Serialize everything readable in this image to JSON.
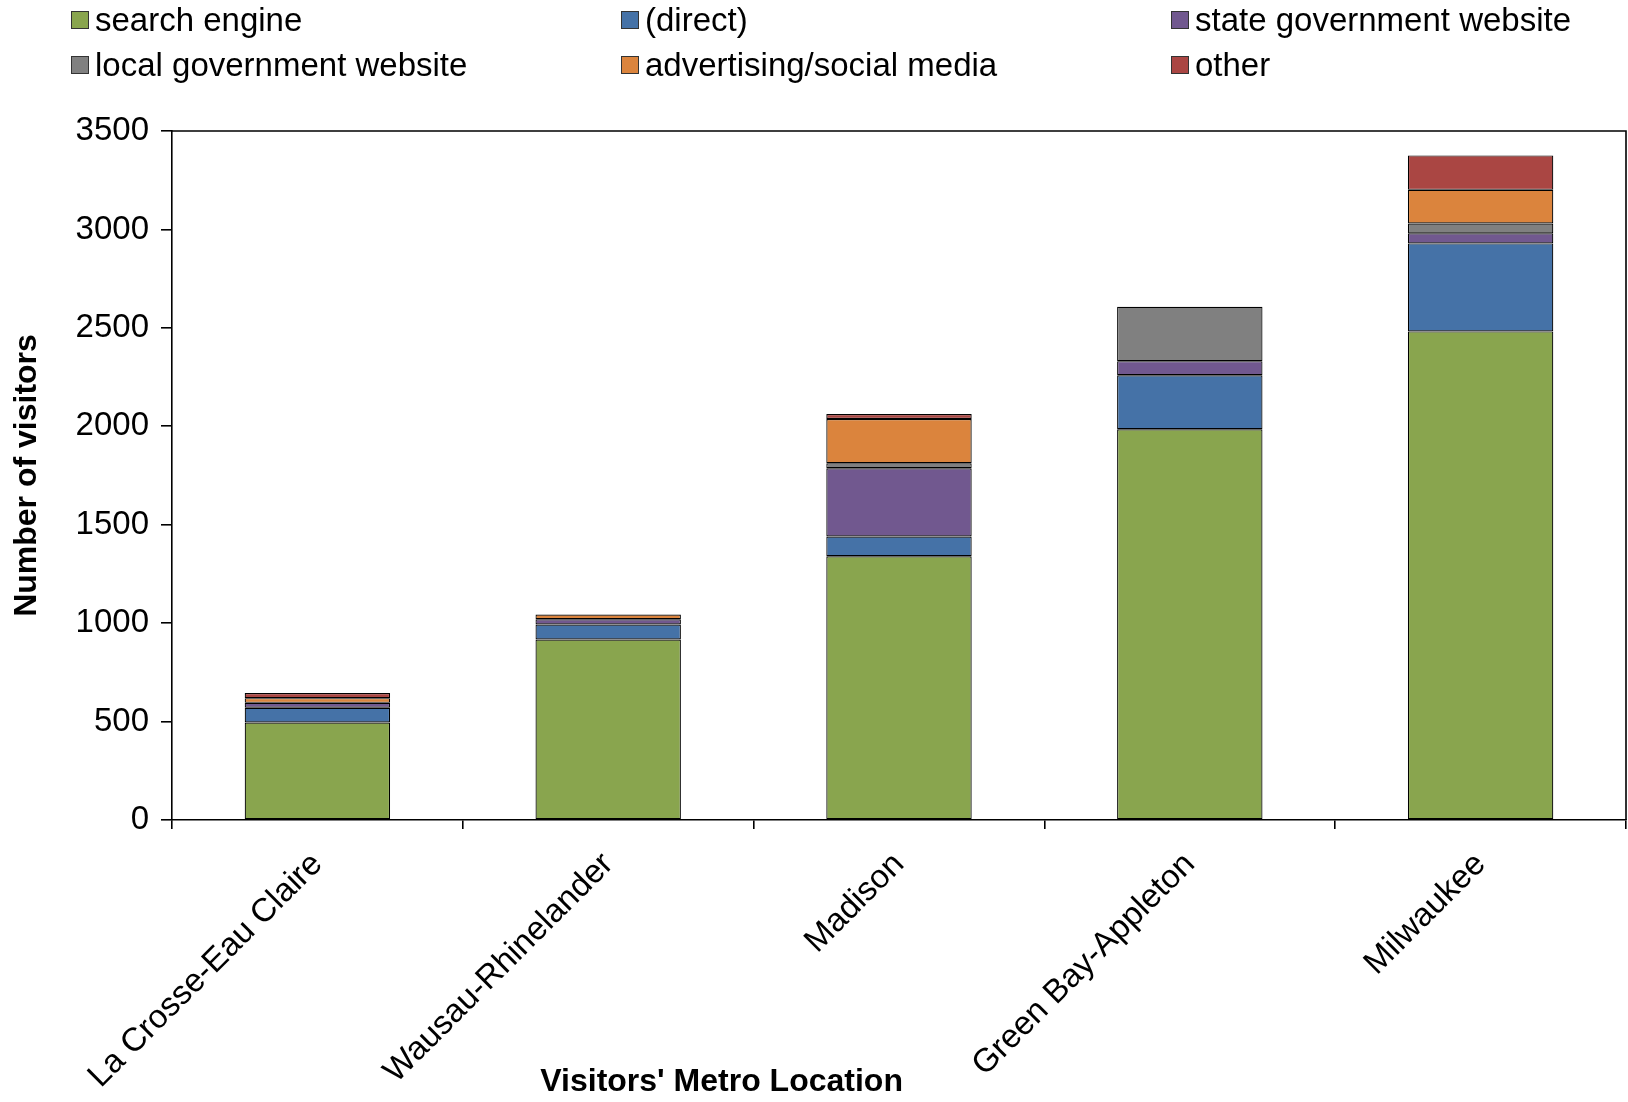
{
  "chart_data": {
    "type": "bar",
    "stacked": true,
    "legend": "top",
    "xlabel": "Visitors' Metro Location",
    "ylabel": "Number of visitors",
    "categories": [
      "La Crosse-Eau Claire",
      "Wausau-Rhinelander",
      "Madison",
      "Green Bay-Appleton",
      "Milwaukee"
    ],
    "ylim": [
      0,
      3500
    ],
    "yticks": [
      0,
      500,
      1000,
      1500,
      2000,
      2500,
      3000,
      3500
    ],
    "series": [
      {
        "name": "search engine",
        "color": "#89a54e",
        "values": [
          495,
          917,
          1340,
          1985,
          2482
        ]
      },
      {
        "name": "(direct)",
        "color": "#4572a7",
        "values": [
          75,
          76,
          100,
          274,
          447
        ]
      },
      {
        "name": "state government website",
        "color": "#71588f",
        "values": [
          25,
          27,
          347,
          72,
          51
        ]
      },
      {
        "name": "local government website",
        "color": "#808080",
        "values": [
          0,
          0,
          25,
          276,
          50
        ]
      },
      {
        "name": "advertising/social media",
        "color": "#db843d",
        "values": [
          24,
          24,
          225,
          0,
          171
        ]
      },
      {
        "name": "other",
        "color": "#aa4643",
        "values": [
          26,
          0,
          25,
          0,
          175
        ]
      }
    ]
  }
}
